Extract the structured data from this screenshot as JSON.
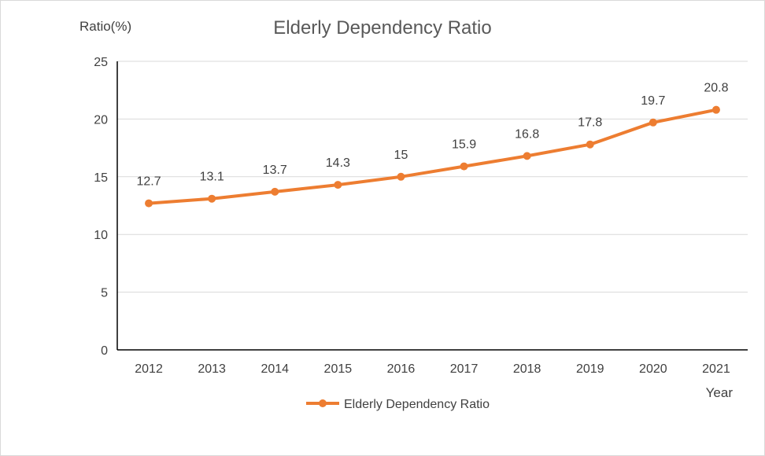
{
  "chart_data": {
    "type": "line",
    "title": "Elderly Dependency Ratio",
    "xlabel": "Year",
    "ylabel": "Ratio(%)",
    "categories": [
      "2012",
      "2013",
      "2014",
      "2015",
      "2016",
      "2017",
      "2018",
      "2019",
      "2020",
      "2021"
    ],
    "series": [
      {
        "name": "Elderly Dependency Ratio",
        "values": [
          12.7,
          13.1,
          13.7,
          14.3,
          15,
          15.9,
          16.8,
          17.8,
          19.7,
          20.8
        ],
        "labels": [
          "12.7",
          "13.1",
          "13.7",
          "14.3",
          "15",
          "15.9",
          "16.8",
          "17.8",
          "19.7",
          "20.8"
        ],
        "color": "#ed7d31"
      }
    ],
    "ylim": [
      0,
      25
    ],
    "yticks": [
      0,
      5,
      10,
      15,
      20,
      25
    ],
    "grid": true,
    "legend": "bottom-center",
    "gridColor": "#d9d9d9",
    "axisColor": "#000000"
  }
}
